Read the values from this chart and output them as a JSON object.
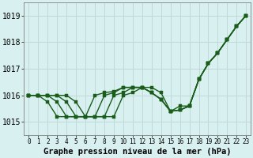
{
  "title": "Graphe pression niveau de la mer (hPa)",
  "background_color": "#d8f0f0",
  "grid_color": "#c0d8d8",
  "line_color": "#1a5c1a",
  "xlim": [
    -0.5,
    23.5
  ],
  "ylim": [
    1014.5,
    1019.5
  ],
  "yticks": [
    1015,
    1016,
    1017,
    1018,
    1019
  ],
  "xticks": [
    0,
    1,
    2,
    3,
    4,
    5,
    6,
    7,
    8,
    9,
    10,
    11,
    12,
    13,
    14,
    15,
    16,
    17,
    18,
    19,
    20,
    21,
    22,
    23
  ],
  "series": [
    {
      "x": [
        0,
        1,
        2,
        3,
        4,
        5,
        6,
        7,
        8,
        9,
        10,
        11,
        12,
        13,
        14,
        15,
        16,
        17,
        18,
        19,
        20,
        21,
        22,
        23
      ],
      "y": [
        1016.0,
        1016.0,
        1015.75,
        1015.2,
        1015.2,
        1015.2,
        1015.2,
        1016.0,
        1016.1,
        1016.15,
        1016.3,
        1016.3,
        1016.3,
        1016.1,
        1015.85,
        1015.4,
        1015.45,
        1015.6,
        1016.6,
        1017.2,
        1017.6,
        1018.1,
        1018.6,
        1019.0
      ]
    },
    {
      "x": [
        0,
        1,
        2,
        3,
        4,
        5,
        6,
        7,
        8,
        9,
        10,
        11,
        12,
        13,
        14,
        15,
        16,
        17,
        18,
        19,
        20,
        21,
        22,
        23
      ],
      "y": [
        1016.0,
        1016.0,
        1016.0,
        1015.75,
        1015.2,
        1015.2,
        1015.2,
        1015.2,
        1016.0,
        1016.1,
        1016.3,
        1016.3,
        1016.3,
        1016.1,
        1015.85,
        1015.4,
        1015.45,
        1015.6,
        1016.6,
        1017.2,
        1017.6,
        1018.1,
        1018.6,
        1019.0
      ]
    },
    {
      "x": [
        0,
        1,
        2,
        3,
        4,
        5,
        6,
        7,
        8,
        9,
        10,
        11,
        12,
        13,
        14,
        15,
        16,
        17,
        18,
        19,
        20,
        21,
        22,
        23
      ],
      "y": [
        1016.0,
        1016.0,
        1016.0,
        1016.0,
        1015.75,
        1015.2,
        1015.2,
        1015.2,
        1015.2,
        1016.0,
        1016.1,
        1016.3,
        1016.3,
        1016.1,
        1015.85,
        1015.4,
        1015.45,
        1015.6,
        1016.6,
        1017.2,
        1017.6,
        1018.1,
        1018.6,
        1019.0
      ]
    },
    {
      "x": [
        0,
        1,
        2,
        3,
        4,
        5,
        6,
        7,
        8,
        9,
        10,
        11,
        12,
        13,
        14,
        15,
        16,
        17,
        18,
        19,
        20,
        21,
        22,
        23
      ],
      "y": [
        1016.0,
        1016.0,
        1016.0,
        1016.0,
        1016.0,
        1015.75,
        1015.2,
        1015.2,
        1015.2,
        1015.2,
        1016.0,
        1016.1,
        1016.3,
        1016.3,
        1016.1,
        1015.4,
        1015.6,
        1015.6,
        1016.6,
        1017.2,
        1017.6,
        1018.1,
        1018.6,
        1019.0
      ]
    }
  ],
  "marker_size": 2.5,
  "line_width": 1.0,
  "ytick_fontsize": 7,
  "xtick_fontsize": 5.5,
  "title_fontsize": 7.5
}
